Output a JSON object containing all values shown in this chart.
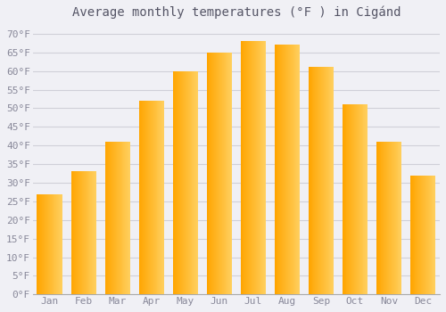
{
  "title": "Average monthly temperatures (°F ) in Cigánd",
  "months": [
    "Jan",
    "Feb",
    "Mar",
    "Apr",
    "May",
    "Jun",
    "Jul",
    "Aug",
    "Sep",
    "Oct",
    "Nov",
    "Dec"
  ],
  "values": [
    27,
    33,
    41,
    52,
    60,
    65,
    68,
    67,
    61,
    51,
    41,
    32
  ],
  "bar_color_left": "#FFA500",
  "bar_color_right": "#FFD070",
  "background_color": "#f0f0f5",
  "plot_bg_color": "#f0f0f5",
  "grid_color": "#d0d0d8",
  "ylim": [
    0,
    72
  ],
  "yticks": [
    0,
    5,
    10,
    15,
    20,
    25,
    30,
    35,
    40,
    45,
    50,
    55,
    60,
    65,
    70
  ],
  "title_fontsize": 10,
  "tick_fontsize": 8,
  "font_family": "monospace",
  "tick_color": "#888899",
  "title_color": "#555566"
}
